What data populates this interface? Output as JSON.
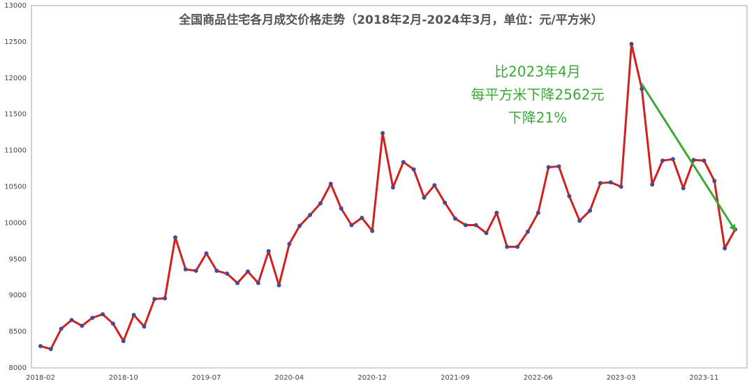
{
  "chart_data": {
    "type": "line",
    "title": "全国商品住宅各月成交价格走势（2018年2月-2024年3月，单位：元/平方米）",
    "categories": [
      "2018-02",
      null,
      null,
      null,
      null,
      null,
      null,
      null,
      "2018-10",
      null,
      null,
      null,
      null,
      null,
      null,
      null,
      "2019-07",
      null,
      null,
      null,
      null,
      null,
      null,
      null,
      "2020-04",
      null,
      null,
      null,
      null,
      null,
      null,
      null,
      "2020-12",
      null,
      null,
      null,
      null,
      null,
      null,
      null,
      "2021-09",
      null,
      null,
      null,
      null,
      null,
      null,
      null,
      "2022-06",
      null,
      null,
      null,
      null,
      null,
      null,
      null,
      "2023-03",
      null,
      null,
      null,
      null,
      null,
      null,
      null,
      "2023-11",
      null,
      null,
      null
    ],
    "values": [
      8300,
      8260,
      8540,
      8660,
      8580,
      8690,
      8740,
      8610,
      8370,
      8730,
      8570,
      8950,
      8960,
      9800,
      9360,
      9340,
      9580,
      9340,
      9300,
      9170,
      9330,
      9170,
      9610,
      9140,
      9710,
      9960,
      10110,
      10270,
      10540,
      10200,
      9970,
      10070,
      9890,
      11240,
      10490,
      10840,
      10740,
      10350,
      10520,
      10280,
      10060,
      9970,
      9970,
      9860,
      10140,
      9670,
      9670,
      9880,
      10140,
      10770,
      10780,
      10370,
      10030,
      10170,
      10550,
      10560,
      10500,
      12470,
      11850,
      10530,
      10860,
      10880,
      10480,
      10870,
      10860,
      10580,
      9650,
      9910
    ],
    "color": "#d21f1f",
    "marker_color": "#4b4a8c",
    "ylim": [
      8000,
      13000
    ],
    "yticks": [
      8000,
      8500,
      9000,
      9500,
      10000,
      10500,
      11000,
      11500,
      12000,
      12500,
      13000
    ],
    "grid": false,
    "annotations": [
      "比2023年4月",
      "每平方米下降2562元",
      "下降21%"
    ],
    "annotation_color": "#3aa935"
  }
}
